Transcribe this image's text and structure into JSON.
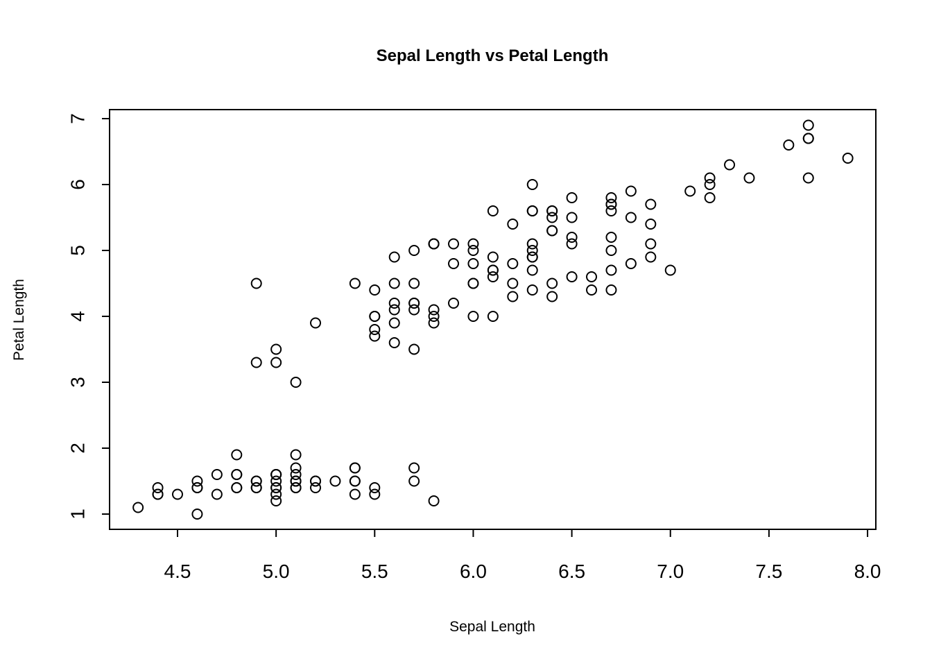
{
  "chart_data": {
    "type": "scatter",
    "title": "Sepal Length vs Petal Length",
    "xlabel": "Sepal Length",
    "ylabel": "Petal Length",
    "xlim": [
      4.3,
      7.9
    ],
    "ylim": [
      1.0,
      6.9
    ],
    "x_ticks": [
      "4.5",
      "5.0",
      "5.5",
      "6.0",
      "6.5",
      "7.0",
      "7.5",
      "8.0"
    ],
    "y_ticks": [
      "1",
      "2",
      "3",
      "4",
      "5",
      "6",
      "7"
    ],
    "grid": false,
    "marker": "open-circle",
    "points": [
      [
        5.1,
        1.4
      ],
      [
        4.9,
        1.4
      ],
      [
        4.7,
        1.3
      ],
      [
        4.6,
        1.5
      ],
      [
        5.0,
        1.4
      ],
      [
        5.4,
        1.7
      ],
      [
        4.6,
        1.4
      ],
      [
        5.0,
        1.5
      ],
      [
        4.4,
        1.4
      ],
      [
        4.9,
        1.5
      ],
      [
        5.4,
        1.5
      ],
      [
        4.8,
        1.6
      ],
      [
        4.8,
        1.4
      ],
      [
        4.3,
        1.1
      ],
      [
        5.8,
        1.2
      ],
      [
        5.7,
        1.5
      ],
      [
        5.4,
        1.3
      ],
      [
        5.1,
        1.4
      ],
      [
        5.7,
        1.7
      ],
      [
        5.1,
        1.5
      ],
      [
        5.4,
        1.7
      ],
      [
        5.1,
        1.5
      ],
      [
        4.6,
        1.0
      ],
      [
        5.1,
        1.7
      ],
      [
        4.8,
        1.9
      ],
      [
        5.0,
        1.6
      ],
      [
        5.0,
        1.6
      ],
      [
        5.2,
        1.5
      ],
      [
        5.2,
        1.4
      ],
      [
        4.7,
        1.6
      ],
      [
        4.8,
        1.6
      ],
      [
        5.4,
        1.5
      ],
      [
        5.2,
        1.5
      ],
      [
        5.5,
        1.4
      ],
      [
        4.9,
        1.5
      ],
      [
        5.0,
        1.2
      ],
      [
        5.5,
        1.3
      ],
      [
        4.9,
        1.4
      ],
      [
        4.4,
        1.3
      ],
      [
        5.1,
        1.5
      ],
      [
        5.0,
        1.3
      ],
      [
        4.5,
        1.3
      ],
      [
        4.4,
        1.3
      ],
      [
        5.0,
        1.6
      ],
      [
        5.1,
        1.9
      ],
      [
        4.8,
        1.4
      ],
      [
        5.1,
        1.6
      ],
      [
        4.6,
        1.4
      ],
      [
        5.3,
        1.5
      ],
      [
        5.0,
        1.4
      ],
      [
        7.0,
        4.7
      ],
      [
        6.4,
        4.5
      ],
      [
        6.9,
        4.9
      ],
      [
        5.5,
        4.0
      ],
      [
        6.5,
        4.6
      ],
      [
        5.7,
        4.5
      ],
      [
        6.3,
        4.7
      ],
      [
        4.9,
        3.3
      ],
      [
        6.6,
        4.6
      ],
      [
        5.2,
        3.9
      ],
      [
        5.0,
        3.5
      ],
      [
        5.9,
        4.2
      ],
      [
        6.0,
        4.0
      ],
      [
        6.1,
        4.7
      ],
      [
        5.6,
        3.6
      ],
      [
        6.7,
        4.4
      ],
      [
        5.6,
        4.5
      ],
      [
        5.8,
        4.1
      ],
      [
        6.2,
        4.5
      ],
      [
        5.6,
        3.9
      ],
      [
        5.9,
        4.8
      ],
      [
        6.1,
        4.0
      ],
      [
        6.3,
        4.9
      ],
      [
        6.1,
        4.7
      ],
      [
        6.4,
        4.3
      ],
      [
        6.6,
        4.4
      ],
      [
        6.8,
        4.8
      ],
      [
        6.7,
        5.0
      ],
      [
        6.0,
        4.5
      ],
      [
        5.7,
        3.5
      ],
      [
        5.5,
        3.8
      ],
      [
        5.5,
        3.7
      ],
      [
        5.8,
        3.9
      ],
      [
        6.0,
        5.1
      ],
      [
        5.4,
        4.5
      ],
      [
        6.0,
        4.5
      ],
      [
        6.7,
        4.7
      ],
      [
        6.3,
        4.4
      ],
      [
        5.6,
        4.1
      ],
      [
        5.5,
        4.0
      ],
      [
        5.5,
        4.4
      ],
      [
        6.1,
        4.6
      ],
      [
        5.8,
        4.0
      ],
      [
        5.0,
        3.3
      ],
      [
        5.6,
        4.2
      ],
      [
        5.7,
        4.2
      ],
      [
        5.7,
        4.2
      ],
      [
        6.2,
        4.3
      ],
      [
        5.1,
        3.0
      ],
      [
        5.7,
        4.1
      ],
      [
        6.3,
        6.0
      ],
      [
        5.8,
        5.1
      ],
      [
        7.1,
        5.9
      ],
      [
        6.3,
        5.6
      ],
      [
        6.5,
        5.8
      ],
      [
        7.6,
        6.6
      ],
      [
        4.9,
        4.5
      ],
      [
        7.3,
        6.3
      ],
      [
        6.7,
        5.8
      ],
      [
        7.2,
        6.1
      ],
      [
        6.5,
        5.1
      ],
      [
        6.4,
        5.3
      ],
      [
        6.8,
        5.5
      ],
      [
        5.7,
        5.0
      ],
      [
        5.8,
        5.1
      ],
      [
        6.4,
        5.3
      ],
      [
        6.5,
        5.5
      ],
      [
        7.7,
        6.7
      ],
      [
        7.7,
        6.9
      ],
      [
        6.0,
        5.0
      ],
      [
        6.9,
        5.7
      ],
      [
        5.6,
        4.9
      ],
      [
        7.7,
        6.7
      ],
      [
        6.3,
        4.9
      ],
      [
        6.7,
        5.7
      ],
      [
        7.2,
        6.0
      ],
      [
        6.2,
        4.8
      ],
      [
        6.1,
        4.9
      ],
      [
        6.4,
        5.6
      ],
      [
        7.2,
        5.8
      ],
      [
        7.4,
        6.1
      ],
      [
        7.9,
        6.4
      ],
      [
        6.4,
        5.6
      ],
      [
        6.3,
        5.1
      ],
      [
        6.1,
        5.6
      ],
      [
        7.7,
        6.1
      ],
      [
        6.3,
        5.6
      ],
      [
        6.4,
        5.5
      ],
      [
        6.0,
        4.8
      ],
      [
        6.9,
        5.4
      ],
      [
        6.7,
        5.6
      ],
      [
        6.9,
        5.1
      ],
      [
        5.8,
        5.1
      ],
      [
        6.8,
        5.9
      ],
      [
        6.7,
        5.7
      ],
      [
        6.7,
        5.2
      ],
      [
        6.3,
        5.0
      ],
      [
        6.5,
        5.2
      ],
      [
        6.2,
        5.4
      ],
      [
        5.9,
        5.1
      ]
    ]
  }
}
